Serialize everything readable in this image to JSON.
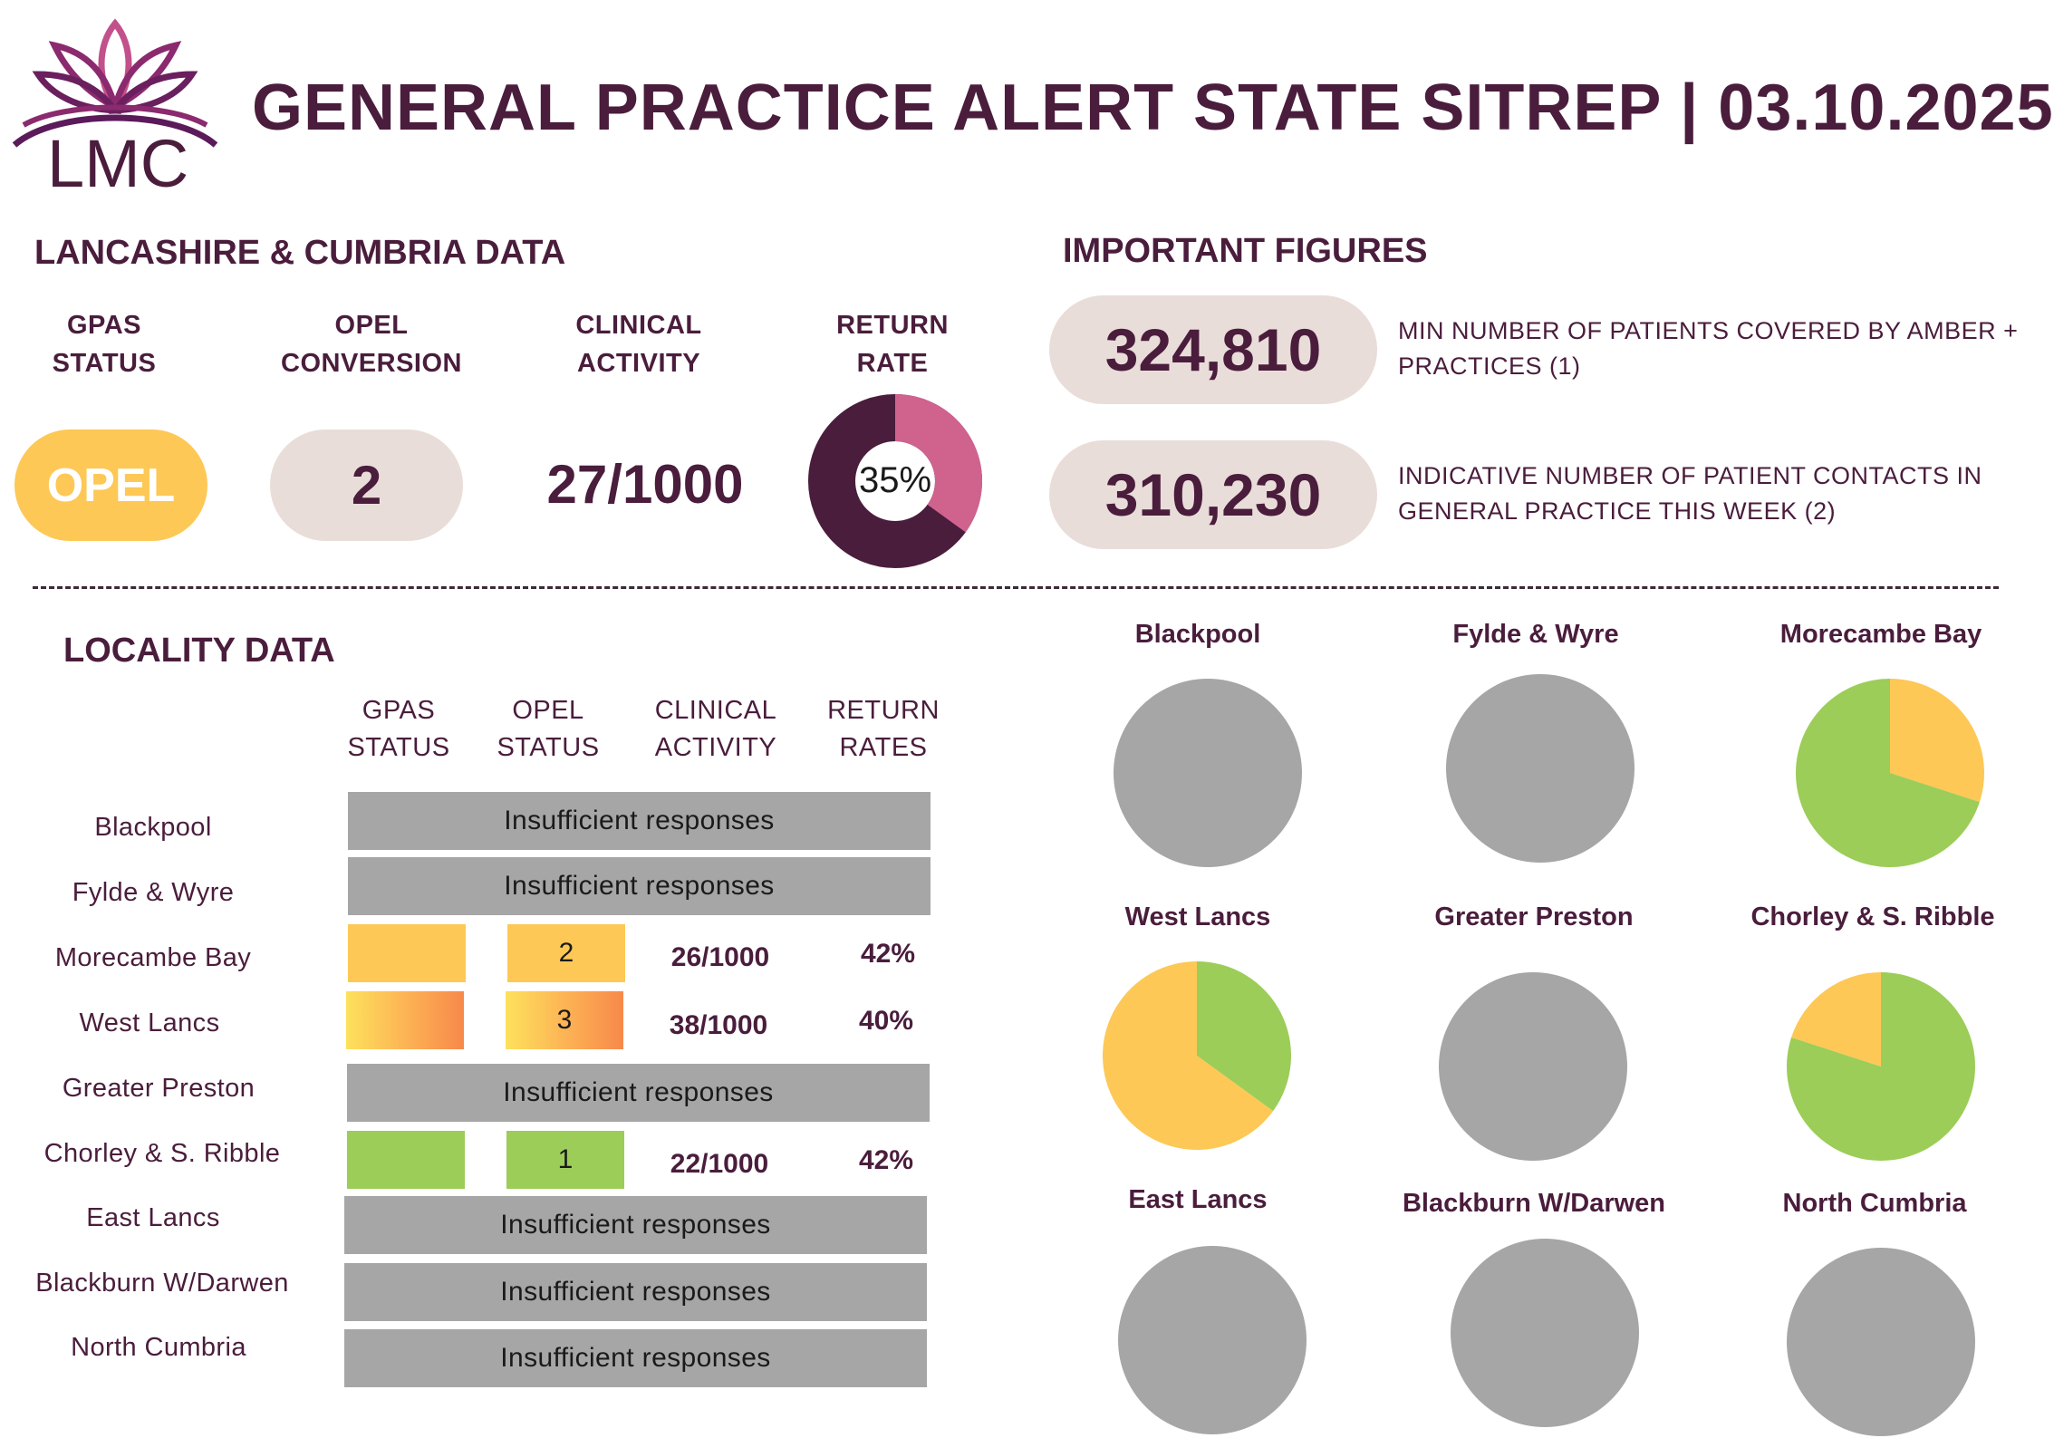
{
  "header": {
    "logo_text": "LMC",
    "title": "GENERAL PRACTICE ALERT STATE SITREP | 03.10.2025"
  },
  "region": {
    "section_title": "LANCASHIRE & CUMBRIA DATA",
    "metrics": [
      {
        "label_line1": "GPAS",
        "label_line2": "STATUS",
        "value": "OPEL"
      },
      {
        "label_line1": "OPEL",
        "label_line2": "CONVERSION",
        "value": "2"
      },
      {
        "label_line1": "CLINICAL",
        "label_line2": "ACTIVITY",
        "value": "27/1000"
      },
      {
        "label_line1": "RETURN",
        "label_line2": "RATE",
        "value": "35%"
      }
    ],
    "return_rate_fraction": 0.35,
    "colors": {
      "opel": "#fdc855",
      "neutral_pill": "#e9ddd9",
      "ring_main": "#4a1d3c",
      "ring_accent": "#d0628e"
    }
  },
  "figures": {
    "section_title": "IMPORTANT FIGURES",
    "items": [
      {
        "value": "324,810",
        "desc_line1": "MIN NUMBER OF PATIENTS COVERED BY AMBER +",
        "desc_line2": "PRACTICES (1)"
      },
      {
        "value": "310,230",
        "desc_line1": "INDICATIVE NUMBER OF PATIENT CONTACTS IN",
        "desc_line2": "GENERAL PRACTICE THIS WEEK (2)"
      }
    ]
  },
  "locality": {
    "section_title": "LOCALITY DATA",
    "columns": [
      {
        "line1": "GPAS",
        "line2": "STATUS"
      },
      {
        "line1": "OPEL",
        "line2": "STATUS"
      },
      {
        "line1": "CLINICAL",
        "line2": "ACTIVITY"
      },
      {
        "line1": "RETURN",
        "line2": "RATES"
      }
    ],
    "insufficient_text": "Insufficient responses",
    "rows": [
      {
        "name": "Blackpool",
        "insufficient": true
      },
      {
        "name": "Fylde & Wyre",
        "insufficient": true
      },
      {
        "name": "Morecambe Bay",
        "insufficient": false,
        "gpas_color": "amber",
        "opel": "2",
        "clinical": "26/1000",
        "return_rate": "42%"
      },
      {
        "name": "West Lancs",
        "insufficient": false,
        "gpas_color": "amber-red",
        "opel": "3",
        "clinical": "38/1000",
        "return_rate": "40%"
      },
      {
        "name": "Greater Preston",
        "insufficient": true
      },
      {
        "name": "Chorley & S. Ribble",
        "insufficient": false,
        "gpas_color": "green",
        "opel": "1",
        "clinical": "22/1000",
        "return_rate": "42%"
      },
      {
        "name": "East Lancs",
        "insufficient": true
      },
      {
        "name": "Blackburn W/Darwen",
        "insufficient": true
      },
      {
        "name": "North Cumbria",
        "insufficient": true
      }
    ]
  },
  "chart_data": {
    "type": "pie",
    "colors": {
      "green": "#9ccd58",
      "amber": "#fdc855",
      "no_data": "#a6a6a6"
    },
    "pies": [
      {
        "title": "Blackpool",
        "slices": []
      },
      {
        "title": "Fylde & Wyre",
        "slices": []
      },
      {
        "title": "Morecambe Bay",
        "slices": [
          {
            "color": "amber",
            "value": 0.3
          },
          {
            "color": "green",
            "value": 0.7
          }
        ]
      },
      {
        "title": "West Lancs",
        "slices": [
          {
            "color": "green",
            "value": 0.35
          },
          {
            "color": "amber",
            "value": 0.65
          }
        ]
      },
      {
        "title": "Greater Preston",
        "slices": []
      },
      {
        "title": "Chorley & S. Ribble",
        "slices": [
          {
            "color": "green",
            "value": 0.8
          },
          {
            "color": "amber",
            "value": 0.2
          }
        ]
      },
      {
        "title": "East Lancs",
        "slices": []
      },
      {
        "title": "Blackburn W/Darwen",
        "slices": []
      },
      {
        "title": "North Cumbria",
        "slices": []
      }
    ]
  }
}
